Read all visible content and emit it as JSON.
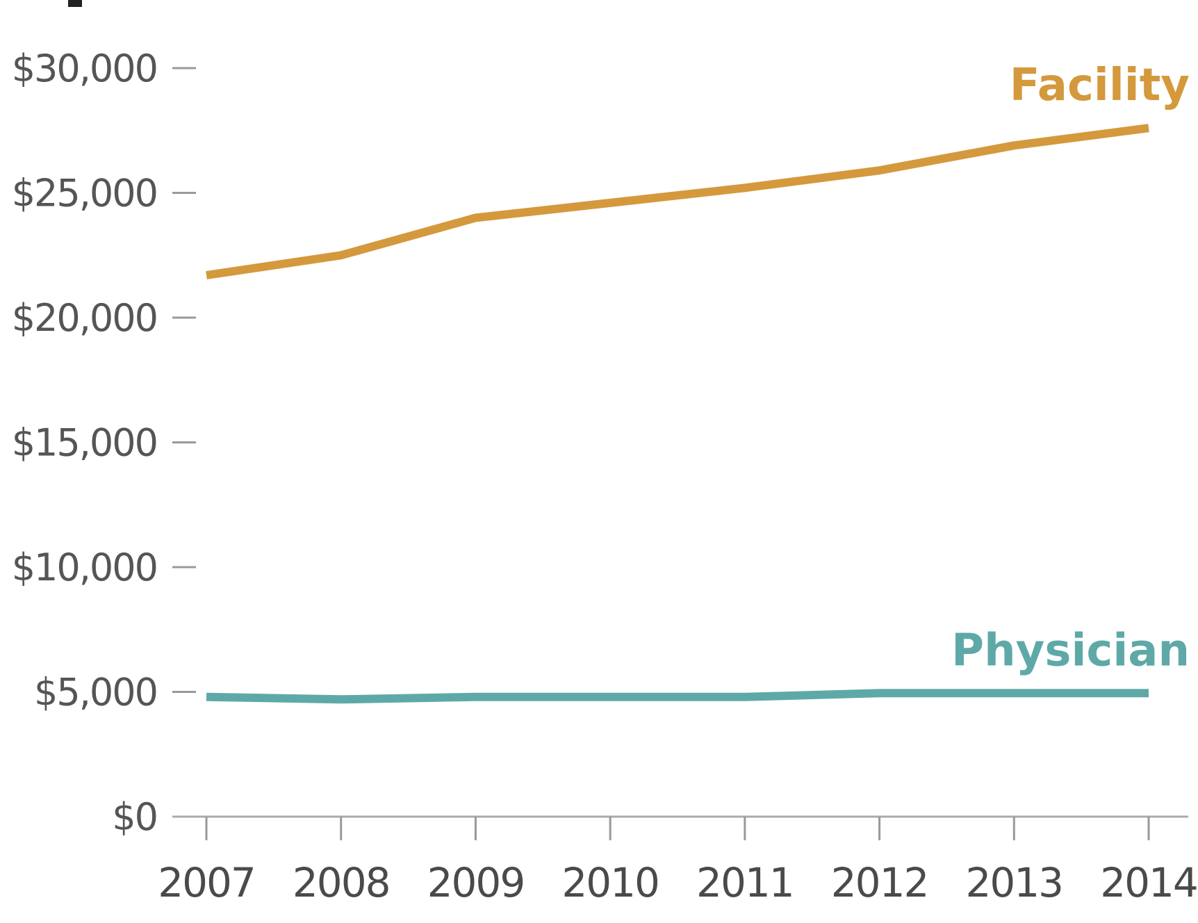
{
  "chart_data": {
    "type": "line",
    "title": "",
    "xlabel": "",
    "ylabel": "",
    "x": [
      "2007",
      "2008",
      "2009",
      "2010",
      "2011",
      "2012",
      "2013",
      "2014"
    ],
    "y_ticks": [
      0,
      5000,
      10000,
      15000,
      20000,
      25000,
      30000
    ],
    "y_tick_labels": [
      "$0",
      "$5,000",
      "$10,000",
      "$15,000",
      "$20,000",
      "$25,000",
      "$30,000"
    ],
    "ylim": [
      0,
      30000
    ],
    "grid": false,
    "legend": "none",
    "series": [
      {
        "name": "Facility",
        "color": "#d4993d",
        "values": [
          21700,
          22500,
          24000,
          24600,
          25200,
          25900,
          26900,
          27600
        ]
      },
      {
        "name": "Physician",
        "color": "#5ea9a8",
        "values": [
          4800,
          4700,
          4800,
          4800,
          4800,
          4950,
          4950,
          4950
        ]
      }
    ]
  }
}
